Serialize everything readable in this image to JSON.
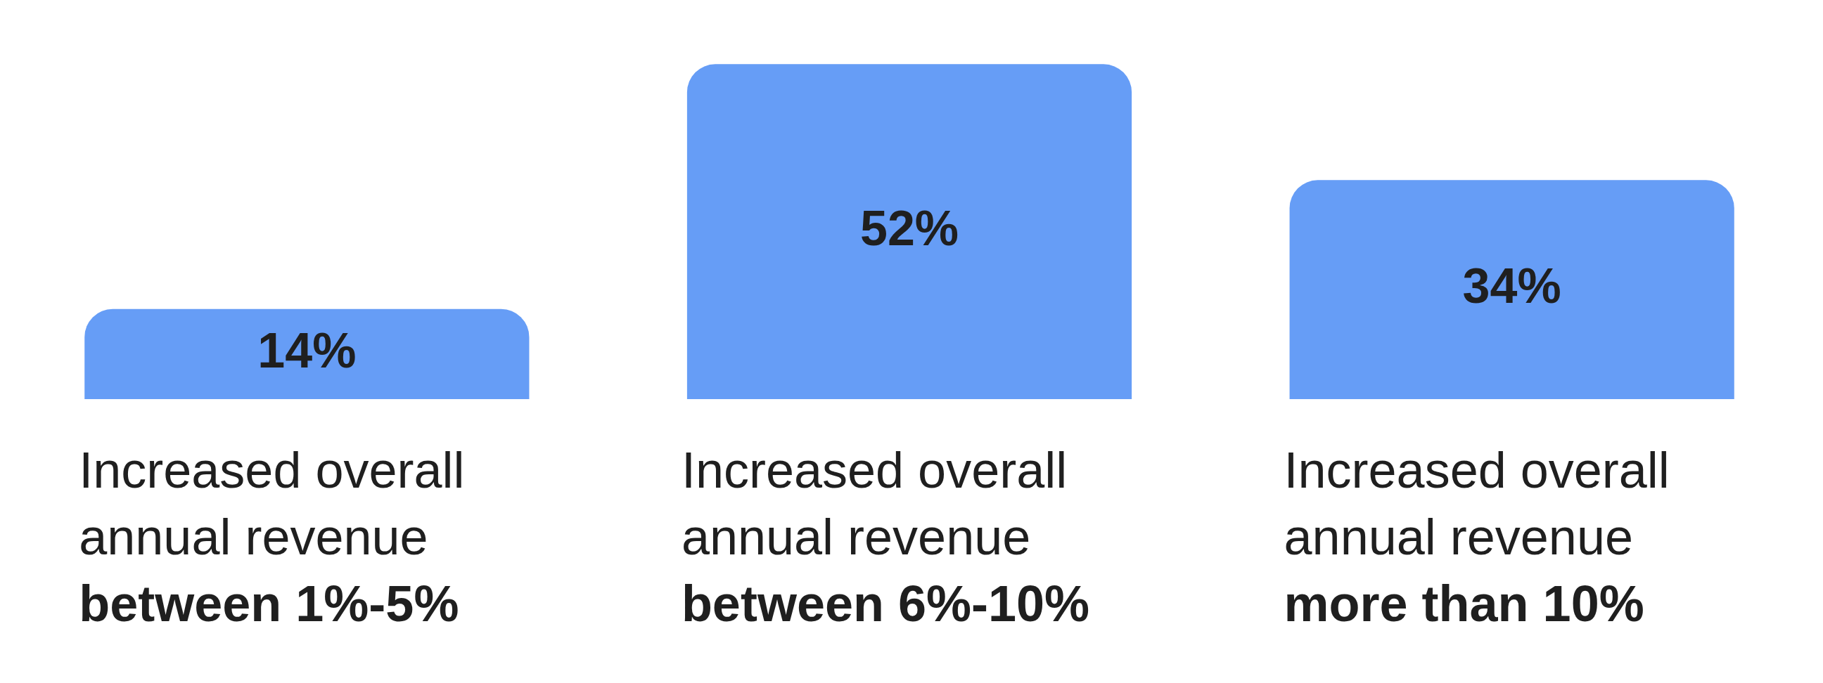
{
  "chart_data": {
    "type": "bar",
    "categories": [
      "Increased overall annual revenue between 1%-5%",
      "Increased overall annual revenue between 6%-10%",
      "Increased overall annual revenue more than 10%"
    ],
    "values": [
      14,
      52,
      34
    ],
    "value_labels": [
      "14%",
      "52%",
      "34%"
    ],
    "color": "#669df6",
    "grid": false,
    "legend": false
  }
}
